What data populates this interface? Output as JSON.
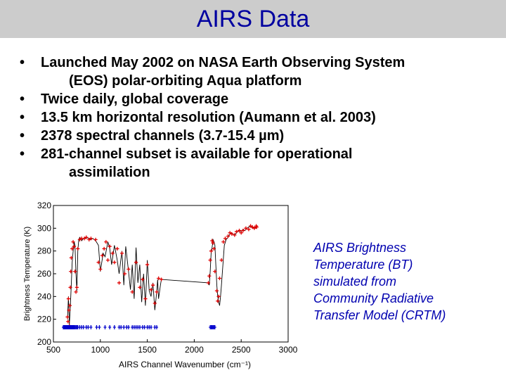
{
  "title": "AIRS Data",
  "bullets": [
    {
      "line1": "Launched May 2002 on NASA Earth Observing System",
      "line2": "(EOS) polar-orbiting Aqua platform"
    },
    {
      "line1": "Twice daily, global coverage"
    },
    {
      "line1": "13.5 km horizontal resolution (Aumann et al. 2003)"
    },
    {
      "line1": "2378 spectral channels (3.7-15.4 µm)"
    },
    {
      "line1": "281-channel subset is available for operational",
      "line2": "assimilation"
    }
  ],
  "bullet_glyph": "•",
  "caption": [
    "AIRS Brightness",
    "Temperature (BT)",
    "simulated from",
    "Community Radiative",
    "Transfer Model (CRTM)"
  ],
  "colors": {
    "title": "#0000a0",
    "caption": "#0000b0",
    "line": "#000000",
    "marker": "#e00000",
    "subset": "#0000cc",
    "title_bar": "#cccccc"
  },
  "chart_data": {
    "type": "line",
    "title": "",
    "xlabel": "AIRS Channel Wavenumber (cm⁻¹)",
    "ylabel": "Brightness Temperature (K)",
    "xlim": [
      500,
      3000
    ],
    "ylim": [
      200,
      320
    ],
    "xticks": [
      500,
      1000,
      1500,
      2000,
      2500,
      3000
    ],
    "yticks": [
      200,
      220,
      240,
      260,
      280,
      300,
      320
    ],
    "grid": false,
    "series": [
      {
        "style": "line",
        "x": [
          650,
          660,
          670,
          680,
          690,
          700,
          710,
          720,
          730,
          740,
          750,
          760,
          770,
          780,
          790,
          800,
          820,
          850,
          880,
          900,
          920,
          950,
          980,
          1000,
          1030,
          1050,
          1080,
          1100,
          1120,
          1150,
          1180,
          1200,
          1230,
          1250,
          1270,
          1300,
          1320,
          1340,
          1360,
          1380,
          1400,
          1420,
          1440,
          1460,
          1480,
          1500,
          1520,
          1540,
          1560,
          1580,
          1600,
          1610,
          1620,
          1640,
          1650,
          2150,
          2160,
          2170,
          2180,
          2190,
          2200,
          2210,
          2220,
          2230,
          2240,
          2250,
          2260,
          2270,
          2280,
          2290,
          2300,
          2320,
          2340,
          2360,
          2380,
          2400,
          2420,
          2440,
          2460,
          2480,
          2500,
          2520,
          2540,
          2560,
          2580,
          2600,
          2620,
          2640,
          2665
        ],
        "y": [
          220,
          240,
          215,
          230,
          250,
          270,
          280,
          288,
          285,
          260,
          245,
          280,
          290,
          292,
          291,
          289,
          291,
          292,
          291,
          290,
          291,
          289,
          285,
          262,
          278,
          275,
          288,
          282,
          268,
          285,
          272,
          260,
          280,
          250,
          284,
          262,
          246,
          268,
          238,
          283,
          252,
          268,
          235,
          260,
          232,
          272,
          245,
          240,
          252,
          228,
          244,
          255,
          238,
          250,
          255,
          252,
          250,
          262,
          278,
          283,
          290,
          288,
          285,
          268,
          250,
          240,
          235,
          232,
          240,
          250,
          262,
          285,
          290,
          292,
          295,
          296,
          294,
          295,
          297,
          298,
          297,
          299,
          298,
          300,
          301,
          302,
          300,
          301,
          300
        ]
      },
      {
        "style": "markers",
        "x": [
          650,
          655,
          660,
          665,
          670,
          675,
          680,
          685,
          690,
          700,
          710,
          720,
          730,
          740,
          750,
          760,
          780,
          800,
          830,
          850,
          880,
          900,
          950,
          980,
          1000,
          1020,
          1040,
          1060,
          1080,
          1100,
          1130,
          1150,
          1180,
          1200,
          1230,
          1260,
          1300,
          1340,
          1380,
          1420,
          1450,
          1480,
          1500,
          1540,
          1560,
          1580,
          1600,
          1620,
          1650,
          2150,
          2160,
          2170,
          2180,
          2190,
          2200,
          2210,
          2220,
          2240,
          2250,
          2260,
          2270,
          2290,
          2310,
          2330,
          2360,
          2380,
          2400,
          2430,
          2450,
          2480,
          2500,
          2520,
          2550,
          2580,
          2600,
          2620,
          2640,
          2660,
          2665
        ],
        "y": [
          222,
          218,
          238,
          228,
          214,
          232,
          248,
          262,
          274,
          282,
          288,
          284,
          262,
          244,
          248,
          282,
          290,
          291,
          291,
          292,
          290,
          291,
          290,
          270,
          264,
          276,
          282,
          288,
          272,
          284,
          278,
          270,
          282,
          252,
          278,
          260,
          264,
          244,
          270,
          248,
          255,
          238,
          268,
          246,
          250,
          234,
          244,
          256,
          255,
          252,
          258,
          272,
          280,
          289,
          287,
          282,
          262,
          245,
          236,
          240,
          256,
          272,
          288,
          291,
          293,
          296,
          295,
          294,
          297,
          298,
          296,
          298,
          300,
          299,
          302,
          301,
          300,
          302,
          301
        ]
      },
      {
        "name": "",
        "style": "subset-ticks",
        "x": [
          605,
          610,
          615,
          620,
          625,
          630,
          635,
          640,
          645,
          650,
          655,
          660,
          665,
          670,
          675,
          680,
          685,
          690,
          695,
          700,
          705,
          710,
          715,
          720,
          730,
          740,
          750,
          760,
          780,
          800,
          820,
          850,
          870,
          900,
          960,
          990,
          1050,
          1100,
          1150,
          1200,
          1220,
          1250,
          1280,
          1300,
          1340,
          1360,
          1380,
          1400,
          1420,
          1450,
          1470,
          1500,
          1520,
          1540,
          1580,
          1600,
          2170,
          2180,
          2190,
          2200,
          2210,
          2220
        ],
        "y": 213
      }
    ]
  }
}
